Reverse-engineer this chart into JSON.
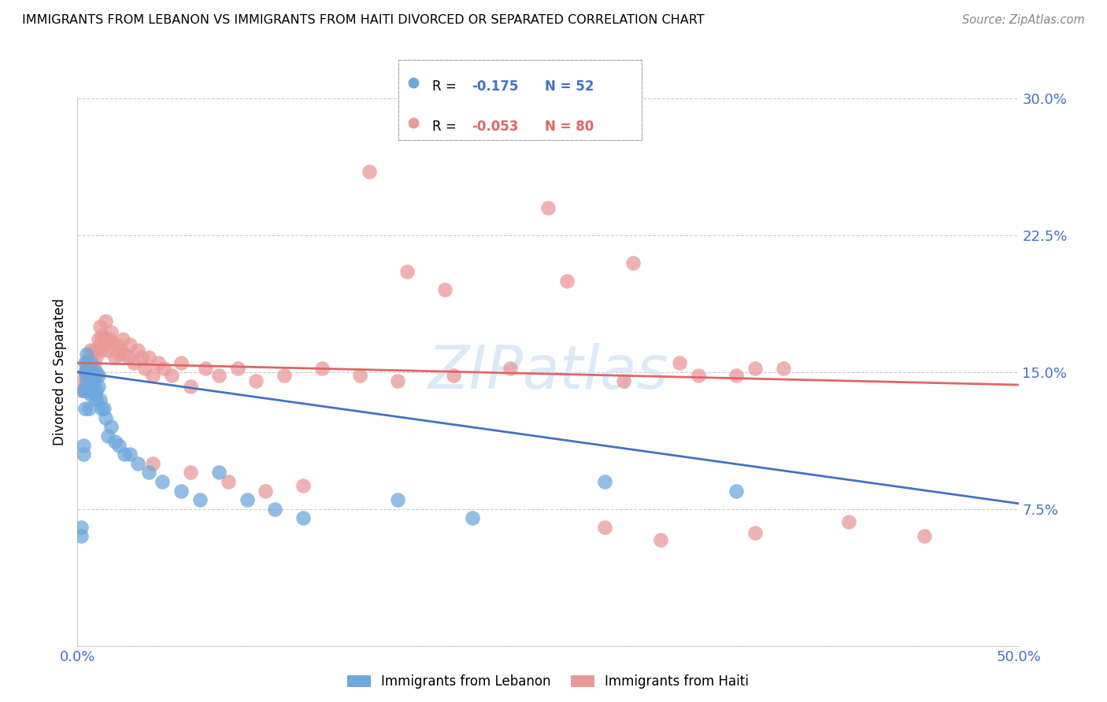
{
  "title": "IMMIGRANTS FROM LEBANON VS IMMIGRANTS FROM HAITI DIVORCED OR SEPARATED CORRELATION CHART",
  "source": "Source: ZipAtlas.com",
  "ylabel": "Divorced or Separated",
  "xlabel_lebanon": "Immigrants from Lebanon",
  "xlabel_haiti": "Immigrants from Haiti",
  "legend_r_lebanon_val": "-0.175",
  "legend_n_lebanon": "N = 52",
  "legend_r_haiti_val": "-0.053",
  "legend_n_haiti": "N = 80",
  "color_lebanon": "#6fa8dc",
  "color_haiti": "#ea9999",
  "color_line_lebanon": "#4472c4",
  "color_line_haiti": "#e06666",
  "color_axis_labels": "#4472c4",
  "color_watermark": "#c9daf8",
  "xlim": [
    0.0,
    0.5
  ],
  "ylim": [
    0.0,
    0.3
  ],
  "xticks": [
    0.0,
    0.1,
    0.2,
    0.3,
    0.4,
    0.5
  ],
  "yticks": [
    0.0,
    0.075,
    0.15,
    0.225,
    0.3
  ],
  "ytick_labels": [
    "",
    "7.5%",
    "15.0%",
    "22.5%",
    "30.0%"
  ],
  "xtick_labels": [
    "0.0%",
    "",
    "",
    "",
    "",
    "50.0%"
  ],
  "lebanon_x": [
    0.002,
    0.002,
    0.003,
    0.003,
    0.003,
    0.004,
    0.004,
    0.004,
    0.004,
    0.005,
    0.005,
    0.005,
    0.005,
    0.005,
    0.006,
    0.006,
    0.006,
    0.007,
    0.007,
    0.007,
    0.008,
    0.008,
    0.009,
    0.009,
    0.01,
    0.01,
    0.01,
    0.011,
    0.011,
    0.012,
    0.013,
    0.014,
    0.015,
    0.016,
    0.018,
    0.02,
    0.022,
    0.025,
    0.028,
    0.032,
    0.038,
    0.045,
    0.055,
    0.065,
    0.075,
    0.09,
    0.105,
    0.12,
    0.17,
    0.21,
    0.28,
    0.35
  ],
  "lebanon_y": [
    0.06,
    0.065,
    0.105,
    0.11,
    0.14,
    0.13,
    0.14,
    0.15,
    0.155,
    0.14,
    0.145,
    0.15,
    0.155,
    0.16,
    0.13,
    0.148,
    0.152,
    0.138,
    0.143,
    0.155,
    0.145,
    0.148,
    0.138,
    0.145,
    0.135,
    0.14,
    0.15,
    0.142,
    0.148,
    0.135,
    0.13,
    0.13,
    0.125,
    0.115,
    0.12,
    0.112,
    0.11,
    0.105,
    0.105,
    0.1,
    0.095,
    0.09,
    0.085,
    0.08,
    0.095,
    0.08,
    0.075,
    0.07,
    0.08,
    0.07,
    0.09,
    0.085
  ],
  "haiti_x": [
    0.002,
    0.003,
    0.003,
    0.004,
    0.004,
    0.005,
    0.005,
    0.006,
    0.006,
    0.007,
    0.007,
    0.008,
    0.008,
    0.009,
    0.009,
    0.01,
    0.01,
    0.011,
    0.012,
    0.012,
    0.013,
    0.013,
    0.014,
    0.015,
    0.015,
    0.016,
    0.017,
    0.018,
    0.019,
    0.02,
    0.021,
    0.022,
    0.023,
    0.024,
    0.025,
    0.027,
    0.028,
    0.03,
    0.032,
    0.034,
    0.036,
    0.038,
    0.04,
    0.043,
    0.046,
    0.05,
    0.055,
    0.06,
    0.068,
    0.075,
    0.085,
    0.095,
    0.11,
    0.13,
    0.15,
    0.17,
    0.2,
    0.23,
    0.26,
    0.295,
    0.32,
    0.35,
    0.375,
    0.155,
    0.175,
    0.195,
    0.25,
    0.29,
    0.33,
    0.36,
    0.04,
    0.06,
    0.08,
    0.1,
    0.12,
    0.28,
    0.31,
    0.36,
    0.41,
    0.45
  ],
  "haiti_y": [
    0.14,
    0.14,
    0.145,
    0.14,
    0.15,
    0.145,
    0.152,
    0.148,
    0.158,
    0.15,
    0.162,
    0.148,
    0.155,
    0.152,
    0.162,
    0.148,
    0.158,
    0.168,
    0.165,
    0.175,
    0.162,
    0.17,
    0.165,
    0.168,
    0.178,
    0.162,
    0.168,
    0.172,
    0.165,
    0.158,
    0.165,
    0.16,
    0.162,
    0.168,
    0.16,
    0.158,
    0.165,
    0.155,
    0.162,
    0.158,
    0.152,
    0.158,
    0.148,
    0.155,
    0.152,
    0.148,
    0.155,
    0.142,
    0.152,
    0.148,
    0.152,
    0.145,
    0.148,
    0.152,
    0.148,
    0.145,
    0.148,
    0.152,
    0.2,
    0.21,
    0.155,
    0.148,
    0.152,
    0.26,
    0.205,
    0.195,
    0.24,
    0.145,
    0.148,
    0.152,
    0.1,
    0.095,
    0.09,
    0.085,
    0.088,
    0.065,
    0.058,
    0.062,
    0.068,
    0.06
  ]
}
